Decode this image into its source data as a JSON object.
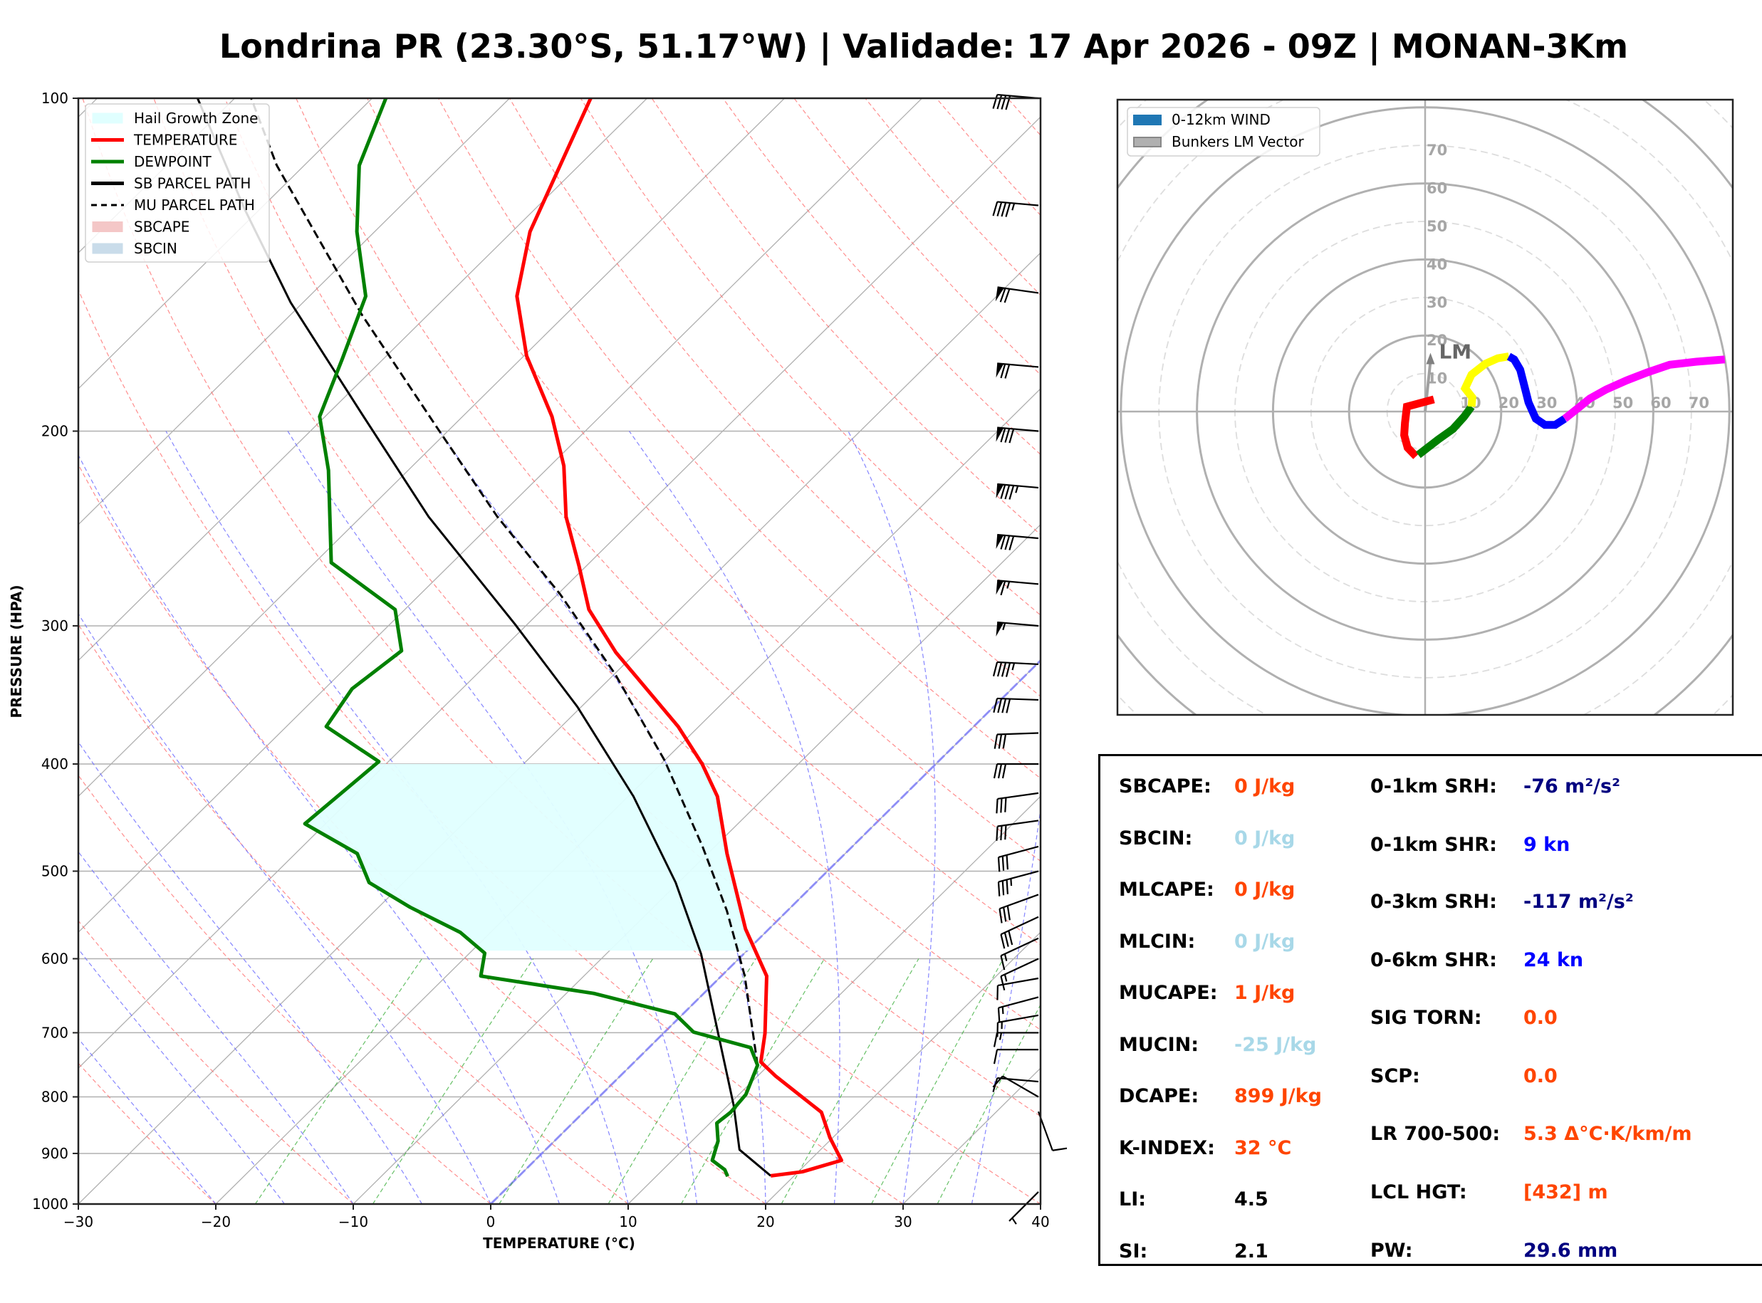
{
  "title": "Londrina PR (23.30°S, 51.17°W) | Validade: 17 Apr 2026 - 09Z | MONAN-3Km",
  "colors": {
    "temperature": "#ff0000",
    "dewpoint": "#008000",
    "parcel": "#000000",
    "hgz": "#e0ffff",
    "isotherm": "#b0b0b0",
    "dry_adiabat": "#ff7070",
    "moist_adiabat": "#7070ff",
    "mixing_ratio": "#40b040",
    "label_orange": "#ff4500",
    "label_lightblue": "#a8d8e8",
    "label_navy": "#000080",
    "label_blue": "#0000ff",
    "label_black": "#000000"
  },
  "chart_data": [
    {
      "type": "line",
      "name": "skewt",
      "xlabel": "TEMPERATURE (°C)",
      "ylabel": "PRESSURE (HPA)",
      "xlim": [
        -30,
        40
      ],
      "ylim": [
        1000,
        100
      ],
      "yscale": "log",
      "xticks": [
        -30,
        -20,
        -10,
        0,
        10,
        20,
        30,
        40
      ],
      "xtick_labels": [
        "−30",
        "−20",
        "−10",
        "0",
        "10",
        "20",
        "30",
        "40"
      ],
      "yticks": [
        100,
        200,
        300,
        400,
        500,
        600,
        700,
        800,
        900,
        1000
      ],
      "ytick_labels": [
        "100",
        "200",
        "300",
        "400",
        "500",
        "600",
        "700",
        "800",
        "900",
        "1000"
      ],
      "legend": {
        "placement": "top-left",
        "entries": [
          {
            "label": "Hail Growth Zone",
            "style": "fill",
            "color": "#e0ffff"
          },
          {
            "label": "TEMPERATURE",
            "style": "line",
            "color": "#ff0000"
          },
          {
            "label": "DEWPOINT",
            "style": "line",
            "color": "#008000"
          },
          {
            "label": "SB PARCEL PATH",
            "style": "line",
            "color": "#000000"
          },
          {
            "label": "MU PARCEL PATH",
            "style": "dashed",
            "color": "#000000"
          },
          {
            "label": "SBCAPE",
            "style": "fill",
            "color": "#f4c7c7"
          },
          {
            "label": "SBCIN",
            "style": "fill",
            "color": "#c9dcea"
          }
        ]
      },
      "series": [
        {
          "name": "TEMPERATURE",
          "points": [
            [
              943,
              18.3
            ],
            [
              935,
              20.3
            ],
            [
              913,
              22.3
            ],
            [
              871,
              19.8
            ],
            [
              826,
              17.3
            ],
            [
              766,
              11.3
            ],
            [
              744,
              9.2
            ],
            [
              701,
              7.4
            ],
            [
              622,
              3.3
            ],
            [
              564,
              -1.7
            ],
            [
              482,
              -8.6
            ],
            [
              428,
              -13.5
            ],
            [
              400,
              -17.0
            ],
            [
              370,
              -21.5
            ],
            [
              317,
              -31.5
            ],
            [
              290,
              -36.6
            ],
            [
              265,
              -40.5
            ],
            [
              239,
              -45.1
            ],
            [
              215,
              -49.0
            ],
            [
              194,
              -53.5
            ],
            [
              171,
              -59.8
            ],
            [
              151,
              -64.9
            ],
            [
              132,
              -68.7
            ],
            [
              100,
              -74.1
            ]
          ]
        },
        {
          "name": "DEWPOINT",
          "points": [
            [
              944,
              15.2
            ],
            [
              931,
              14.5
            ],
            [
              913,
              12.9
            ],
            [
              877,
              11.9
            ],
            [
              845,
              10.5
            ],
            [
              826,
              10.7
            ],
            [
              796,
              10.5
            ],
            [
              749,
              9.2
            ],
            [
              722,
              7.4
            ],
            [
              699,
              2.1
            ],
            [
              673,
              -0.6
            ],
            [
              645,
              -8.0
            ],
            [
              622,
              -17.5
            ],
            [
              593,
              -18.9
            ],
            [
              568,
              -22.2
            ],
            [
              539,
              -27.7
            ],
            [
              512,
              -32.5
            ],
            [
              482,
              -35.5
            ],
            [
              453,
              -41.5
            ],
            [
              398,
              -40.7
            ],
            [
              370,
              -47.1
            ],
            [
              342,
              -48.0
            ],
            [
              316,
              -47.2
            ],
            [
              290,
              -50.7
            ],
            [
              263,
              -58.8
            ],
            [
              217,
              -65.8
            ],
            [
              194,
              -70.4
            ],
            [
              172,
              -73.0
            ],
            [
              151,
              -75.9
            ],
            [
              132,
              -81.3
            ],
            [
              115,
              -86.0
            ],
            [
              100,
              -89.0
            ]
          ]
        },
        {
          "name": "SB PARCEL PATH",
          "points": [
            [
              943,
              18.3
            ],
            [
              893,
              14.1
            ],
            [
              814,
              10.4
            ],
            [
              711,
              4.6
            ],
            [
              594,
              -3.1
            ],
            [
              512,
              -10.2
            ],
            [
              428,
              -19.6
            ],
            [
              355,
              -30.3
            ],
            [
              299,
              -40.9
            ],
            [
              239,
              -55.1
            ],
            [
              194,
              -67.2
            ],
            [
              153,
              -80.9
            ],
            [
              126,
              -91.1
            ],
            [
              100,
              -102.7
            ]
          ]
        },
        {
          "name": "MU PARCEL PATH",
          "points": [
            [
              749,
              9.2
            ],
            [
              622,
              1.7
            ],
            [
              543,
              -4.4
            ],
            [
              475,
              -10.9
            ],
            [
              397,
              -20.0
            ],
            [
              332,
              -29.9
            ],
            [
              281,
              -39.8
            ],
            [
              239,
              -50.1
            ],
            [
              198,
              -61.2
            ],
            [
              157,
              -74.8
            ],
            [
              115,
              -92.0
            ],
            [
              100,
              -98.8
            ]
          ]
        }
      ],
      "hail_growth_zone_hpa": [
        400,
        590
      ],
      "wind_barbs": [
        {
          "p": 100,
          "speed_kn": 40,
          "dir_deg": 275
        },
        {
          "p": 125,
          "speed_kn": 45,
          "dir_deg": 275
        },
        {
          "p": 150,
          "speed_kn": 70,
          "dir_deg": 278
        },
        {
          "p": 175,
          "speed_kn": 70,
          "dir_deg": 275
        },
        {
          "p": 200,
          "speed_kn": 80,
          "dir_deg": 275
        },
        {
          "p": 225,
          "speed_kn": 85,
          "dir_deg": 275
        },
        {
          "p": 250,
          "speed_kn": 80,
          "dir_deg": 275
        },
        {
          "p": 275,
          "speed_kn": 65,
          "dir_deg": 275
        },
        {
          "p": 300,
          "speed_kn": 55,
          "dir_deg": 275
        },
        {
          "p": 325,
          "speed_kn": 45,
          "dir_deg": 273
        },
        {
          "p": 350,
          "speed_kn": 40,
          "dir_deg": 272
        },
        {
          "p": 375,
          "speed_kn": 30,
          "dir_deg": 268
        },
        {
          "p": 400,
          "speed_kn": 30,
          "dir_deg": 270
        },
        {
          "p": 425,
          "speed_kn": 30,
          "dir_deg": 262
        },
        {
          "p": 450,
          "speed_kn": 30,
          "dir_deg": 262
        },
        {
          "p": 475,
          "speed_kn": 30,
          "dir_deg": 255
        },
        {
          "p": 500,
          "speed_kn": 35,
          "dir_deg": 255
        },
        {
          "p": 525,
          "speed_kn": 30,
          "dir_deg": 250
        },
        {
          "p": 550,
          "speed_kn": 30,
          "dir_deg": 245
        },
        {
          "p": 575,
          "speed_kn": 15,
          "dir_deg": 245
        },
        {
          "p": 600,
          "speed_kn": 15,
          "dir_deg": 245
        },
        {
          "p": 625,
          "speed_kn": 10,
          "dir_deg": 260
        },
        {
          "p": 650,
          "speed_kn": 15,
          "dir_deg": 255
        },
        {
          "p": 675,
          "speed_kn": 15,
          "dir_deg": 260
        },
        {
          "p": 700,
          "speed_kn": 15,
          "dir_deg": 270
        },
        {
          "p": 725,
          "speed_kn": 10,
          "dir_deg": 270
        },
        {
          "p": 775,
          "speed_kn": 10,
          "dir_deg": 275
        },
        {
          "p": 800,
          "speed_kn": 10,
          "dir_deg": 300
        },
        {
          "p": 825,
          "speed_kn": 10,
          "dir_deg": 160
        },
        {
          "p": 975,
          "speed_kn": 5,
          "dir_deg": 225
        }
      ]
    },
    {
      "type": "line",
      "name": "hodograph",
      "xlim": [
        -80,
        80
      ],
      "ylim": [
        -80,
        80
      ],
      "ring_step_kn": 10,
      "ring_labels": [
        "10",
        "20",
        "30",
        "40",
        "50",
        "60",
        "70"
      ],
      "legend": {
        "placement": "top-left",
        "entries": [
          {
            "label": "0-12km WIND",
            "color": "#1f77b4"
          },
          {
            "label": "Bunkers LM Vector",
            "color": "#b0b0b0"
          }
        ]
      },
      "lm_label": "LM",
      "lm_vector_kn": [
        1.4,
        14.7
      ],
      "segments": [
        {
          "color": "#ff0000",
          "points": [
            [
              2.3,
              3.2
            ],
            [
              -4.8,
              1.3
            ],
            [
              -5.3,
              -3.0
            ],
            [
              -5.5,
              -6.2
            ],
            [
              -4.6,
              -9.5
            ],
            [
              -2.4,
              -11.8
            ]
          ]
        },
        {
          "color": "#008000",
          "points": [
            [
              -1.8,
              -11.4
            ],
            [
              3.5,
              -7.3
            ],
            [
              7.3,
              -4.6
            ],
            [
              10.2,
              -1.4
            ],
            [
              12.2,
              1.3
            ]
          ]
        },
        {
          "color": "#ffff00",
          "points": [
            [
              12.2,
              1.3
            ],
            [
              12.4,
              3.7
            ],
            [
              10.5,
              6.1
            ],
            [
              12.2,
              9.7
            ],
            [
              15.9,
              12.6
            ],
            [
              19.1,
              14.0
            ],
            [
              22.0,
              14.5
            ]
          ]
        },
        {
          "color": "#0000ff",
          "points": [
            [
              22.0,
              14.5
            ],
            [
              23.4,
              13.7
            ],
            [
              25.0,
              11.0
            ],
            [
              26.1,
              6.7
            ],
            [
              27.2,
              2.4
            ],
            [
              29.1,
              -1.9
            ],
            [
              31.5,
              -3.5
            ],
            [
              34.2,
              -3.5
            ],
            [
              36.7,
              -1.9
            ]
          ]
        },
        {
          "color": "#ff00ff",
          "points": [
            [
              36.7,
              -1.9
            ],
            [
              40.1,
              0.8
            ],
            [
              43.3,
              3.4
            ],
            [
              47.6,
              5.8
            ],
            [
              53.0,
              8.2
            ],
            [
              58.4,
              10.3
            ],
            [
              64.3,
              12.3
            ],
            [
              71.3,
              13.1
            ],
            [
              78.8,
              13.7
            ]
          ]
        }
      ]
    }
  ],
  "stats": {
    "left": [
      {
        "label": "SBCAPE:",
        "value": "0 J/kg",
        "color": "#ff4500"
      },
      {
        "label": "SBCIN:",
        "value": "0 J/kg",
        "color": "#a8d8e8"
      },
      {
        "label": "MLCAPE:",
        "value": "0 J/kg",
        "color": "#ff4500"
      },
      {
        "label": "MLCIN:",
        "value": "0 J/kg",
        "color": "#a8d8e8"
      },
      {
        "label": "MUCAPE:",
        "value": "1 J/kg",
        "color": "#ff4500"
      },
      {
        "label": "MUCIN:",
        "value": "-25 J/kg",
        "color": "#a8d8e8"
      },
      {
        "label": "DCAPE:",
        "value": "899 J/kg",
        "color": "#ff4500"
      },
      {
        "label": "K-INDEX:",
        "value": "32 °C",
        "color": "#ff4500"
      },
      {
        "label": "LI:",
        "value": "4.5",
        "color": "#000000"
      },
      {
        "label": "SI:",
        "value": "2.1",
        "color": "#000000"
      }
    ],
    "right": [
      {
        "label": "0-1km SRH:",
        "value": "-76 m²/s²",
        "color": "#000080"
      },
      {
        "label": "0-1km SHR:",
        "value": "9 kn",
        "color": "#0000ff"
      },
      {
        "label": "0-3km SRH:",
        "value": "-117 m²/s²",
        "color": "#000080"
      },
      {
        "label": "0-6km SHR:",
        "value": "24 kn",
        "color": "#0000ff"
      },
      {
        "label": "SIG TORN:",
        "value": "0.0",
        "color": "#ff4500"
      },
      {
        "label": "SCP:",
        "value": "0.0",
        "color": "#ff4500"
      },
      {
        "label": "LR 700-500:",
        "value": "5.3 Δ°C·K/km/m",
        "color": "#ff4500"
      },
      {
        "label": "LCL HGT:",
        "value": "[432] m",
        "color": "#ff4500"
      },
      {
        "label": "PW:",
        "value": "29.6 mm",
        "color": "#000080"
      }
    ]
  }
}
